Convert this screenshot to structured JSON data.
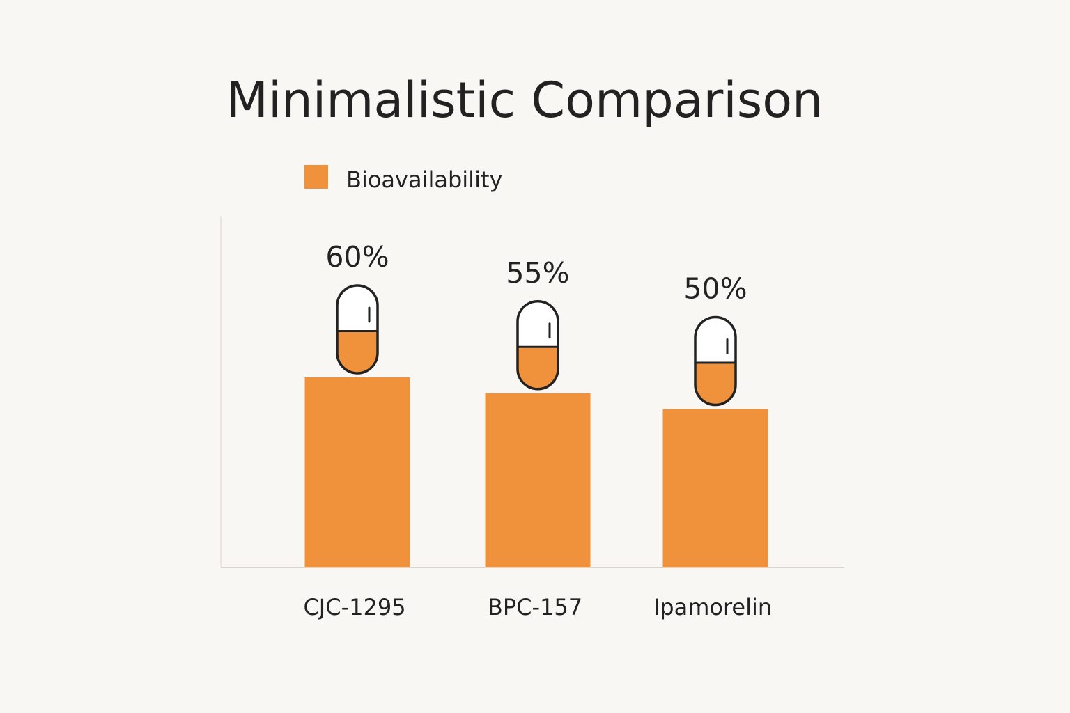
{
  "chart_data": {
    "type": "bar",
    "title": "Minimalistic Comparison",
    "categories": [
      "CJC-1295",
      "BPC-157",
      "Ipamorelin"
    ],
    "series": [
      {
        "name": "Bioavailability",
        "values": [
          60,
          55,
          50
        ],
        "labels": [
          "60%",
          "55%",
          "50%"
        ]
      }
    ],
    "unit": "%",
    "legend_position": "top-left",
    "grid": false,
    "bar_color": "#f0913c",
    "marker_icon": "pill-capsule-icon"
  }
}
